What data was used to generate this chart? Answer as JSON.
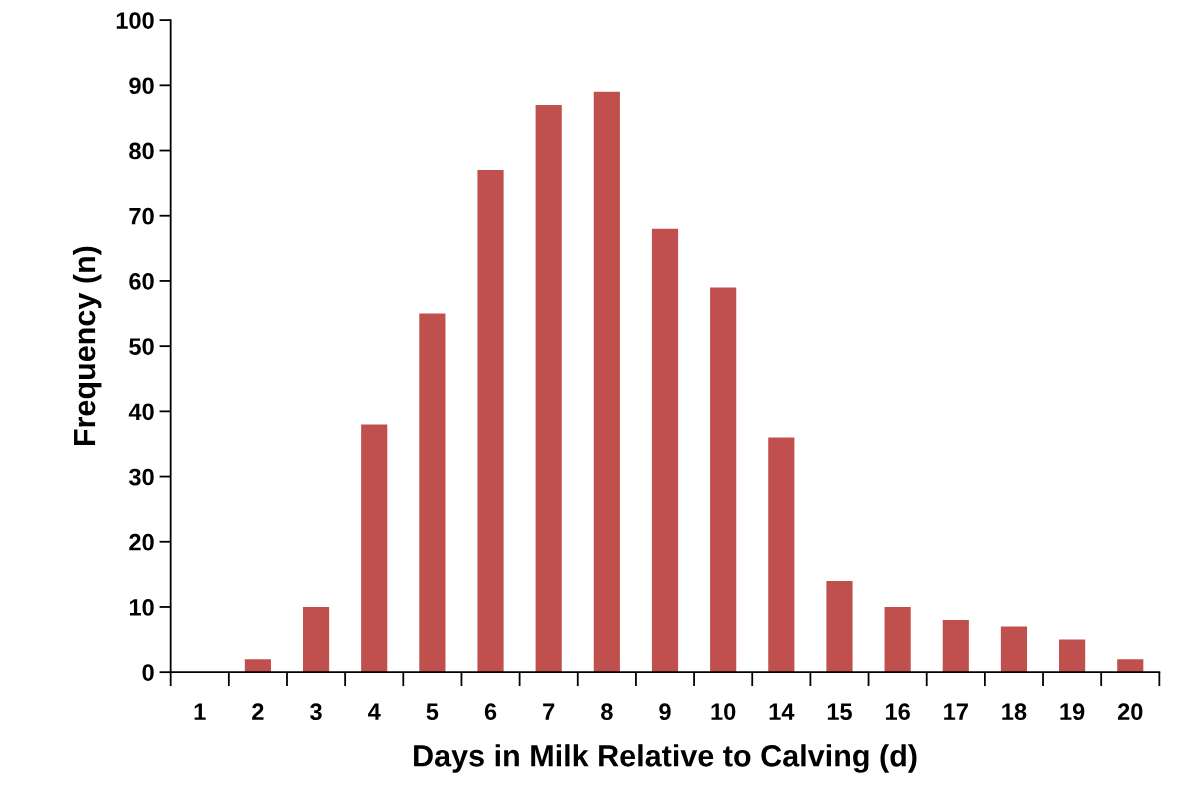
{
  "chart_data": {
    "type": "bar",
    "xlabel": "Days in Milk Relative to Calving (d)",
    "ylabel": "Frequency (n)",
    "categories": [
      "1",
      "2",
      "3",
      "4",
      "5",
      "6",
      "7",
      "8",
      "9",
      "10",
      "14",
      "15",
      "16",
      "17",
      "18",
      "19",
      "20"
    ],
    "values": [
      0,
      2,
      10,
      38,
      55,
      77,
      87,
      89,
      68,
      59,
      36,
      14,
      10,
      8,
      7,
      5,
      2
    ],
    "color": "#c0504d",
    "ylim": [
      0,
      100
    ],
    "yticks": [
      0,
      10,
      20,
      30,
      40,
      50,
      60,
      70,
      80,
      90,
      100
    ],
    "grid": false
  }
}
